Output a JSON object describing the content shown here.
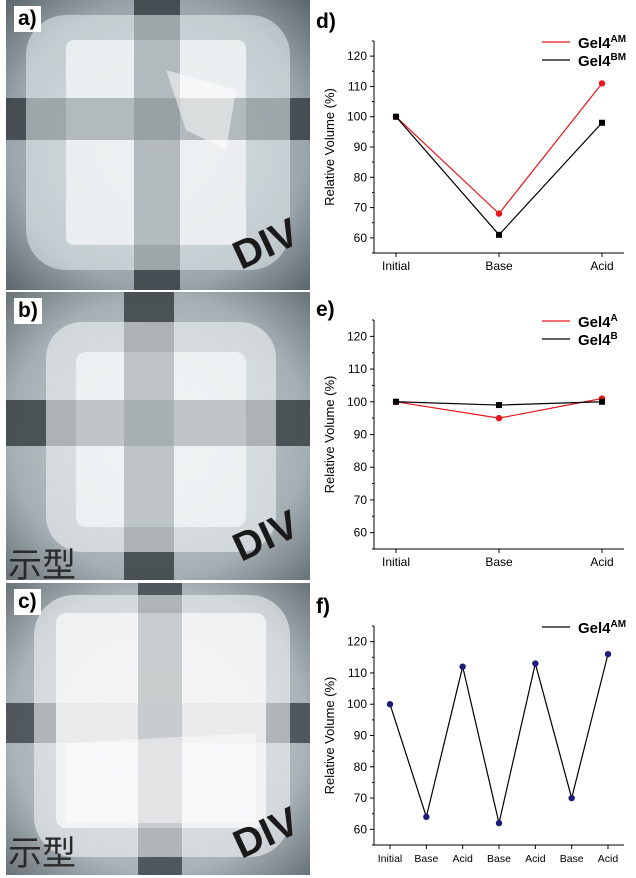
{
  "panels": {
    "a": "a)",
    "b": "b)",
    "c": "c)",
    "d": "d)",
    "e": "e)",
    "f": "f)"
  },
  "photo_text": {
    "a": "DIV",
    "b1": "DIV",
    "b2": "示型",
    "c1": "DIV",
    "c2": "示型"
  },
  "colors": {
    "red": "#e8161b",
    "black": "#000000",
    "navy": "#1c1c7a"
  },
  "chart_data": [
    {
      "id": "d",
      "type": "line",
      "ylabel": "Relative Volume (%)",
      "categories": [
        "Initial",
        "Base",
        "Acid"
      ],
      "ylim": [
        55,
        125
      ],
      "yticks": [
        60,
        70,
        80,
        90,
        100,
        110,
        120
      ],
      "legend_position": "top-right",
      "series": [
        {
          "name": "Gel4",
          "sup": "AM",
          "color": "#e8161b",
          "marker": "circle",
          "values": [
            100,
            68,
            111
          ]
        },
        {
          "name": "Gel4",
          "sup": "BM",
          "color": "#000000",
          "marker": "square",
          "values": [
            100,
            61,
            98
          ]
        }
      ]
    },
    {
      "id": "e",
      "type": "line",
      "ylabel": "Relative Volume (%)",
      "categories": [
        "Initial",
        "Base",
        "Acid"
      ],
      "ylim": [
        55,
        125
      ],
      "yticks": [
        60,
        70,
        80,
        90,
        100,
        110,
        120
      ],
      "legend_position": "top-right",
      "series": [
        {
          "name": "Gel4",
          "sup": "A",
          "color": "#e8161b",
          "marker": "circle",
          "values": [
            100,
            95,
            101
          ]
        },
        {
          "name": "Gel4",
          "sup": "B",
          "color": "#000000",
          "marker": "square",
          "values": [
            100,
            99,
            100
          ]
        }
      ]
    },
    {
      "id": "f",
      "type": "line",
      "ylabel": "Relative Volume (%)",
      "categories": [
        "Initial",
        "Base",
        "Acid",
        "Base",
        "Acid",
        "Base",
        "Acid"
      ],
      "ylim": [
        55,
        125
      ],
      "yticks": [
        60,
        70,
        80,
        90,
        100,
        110,
        120
      ],
      "legend_position": "top-right",
      "series": [
        {
          "name": "Gel4",
          "sup": "AM",
          "color": "#000000",
          "marker": "circle",
          "marker_color": "#1c1c7a",
          "values": [
            100,
            64,
            112,
            62,
            113,
            70,
            116
          ]
        }
      ]
    }
  ]
}
